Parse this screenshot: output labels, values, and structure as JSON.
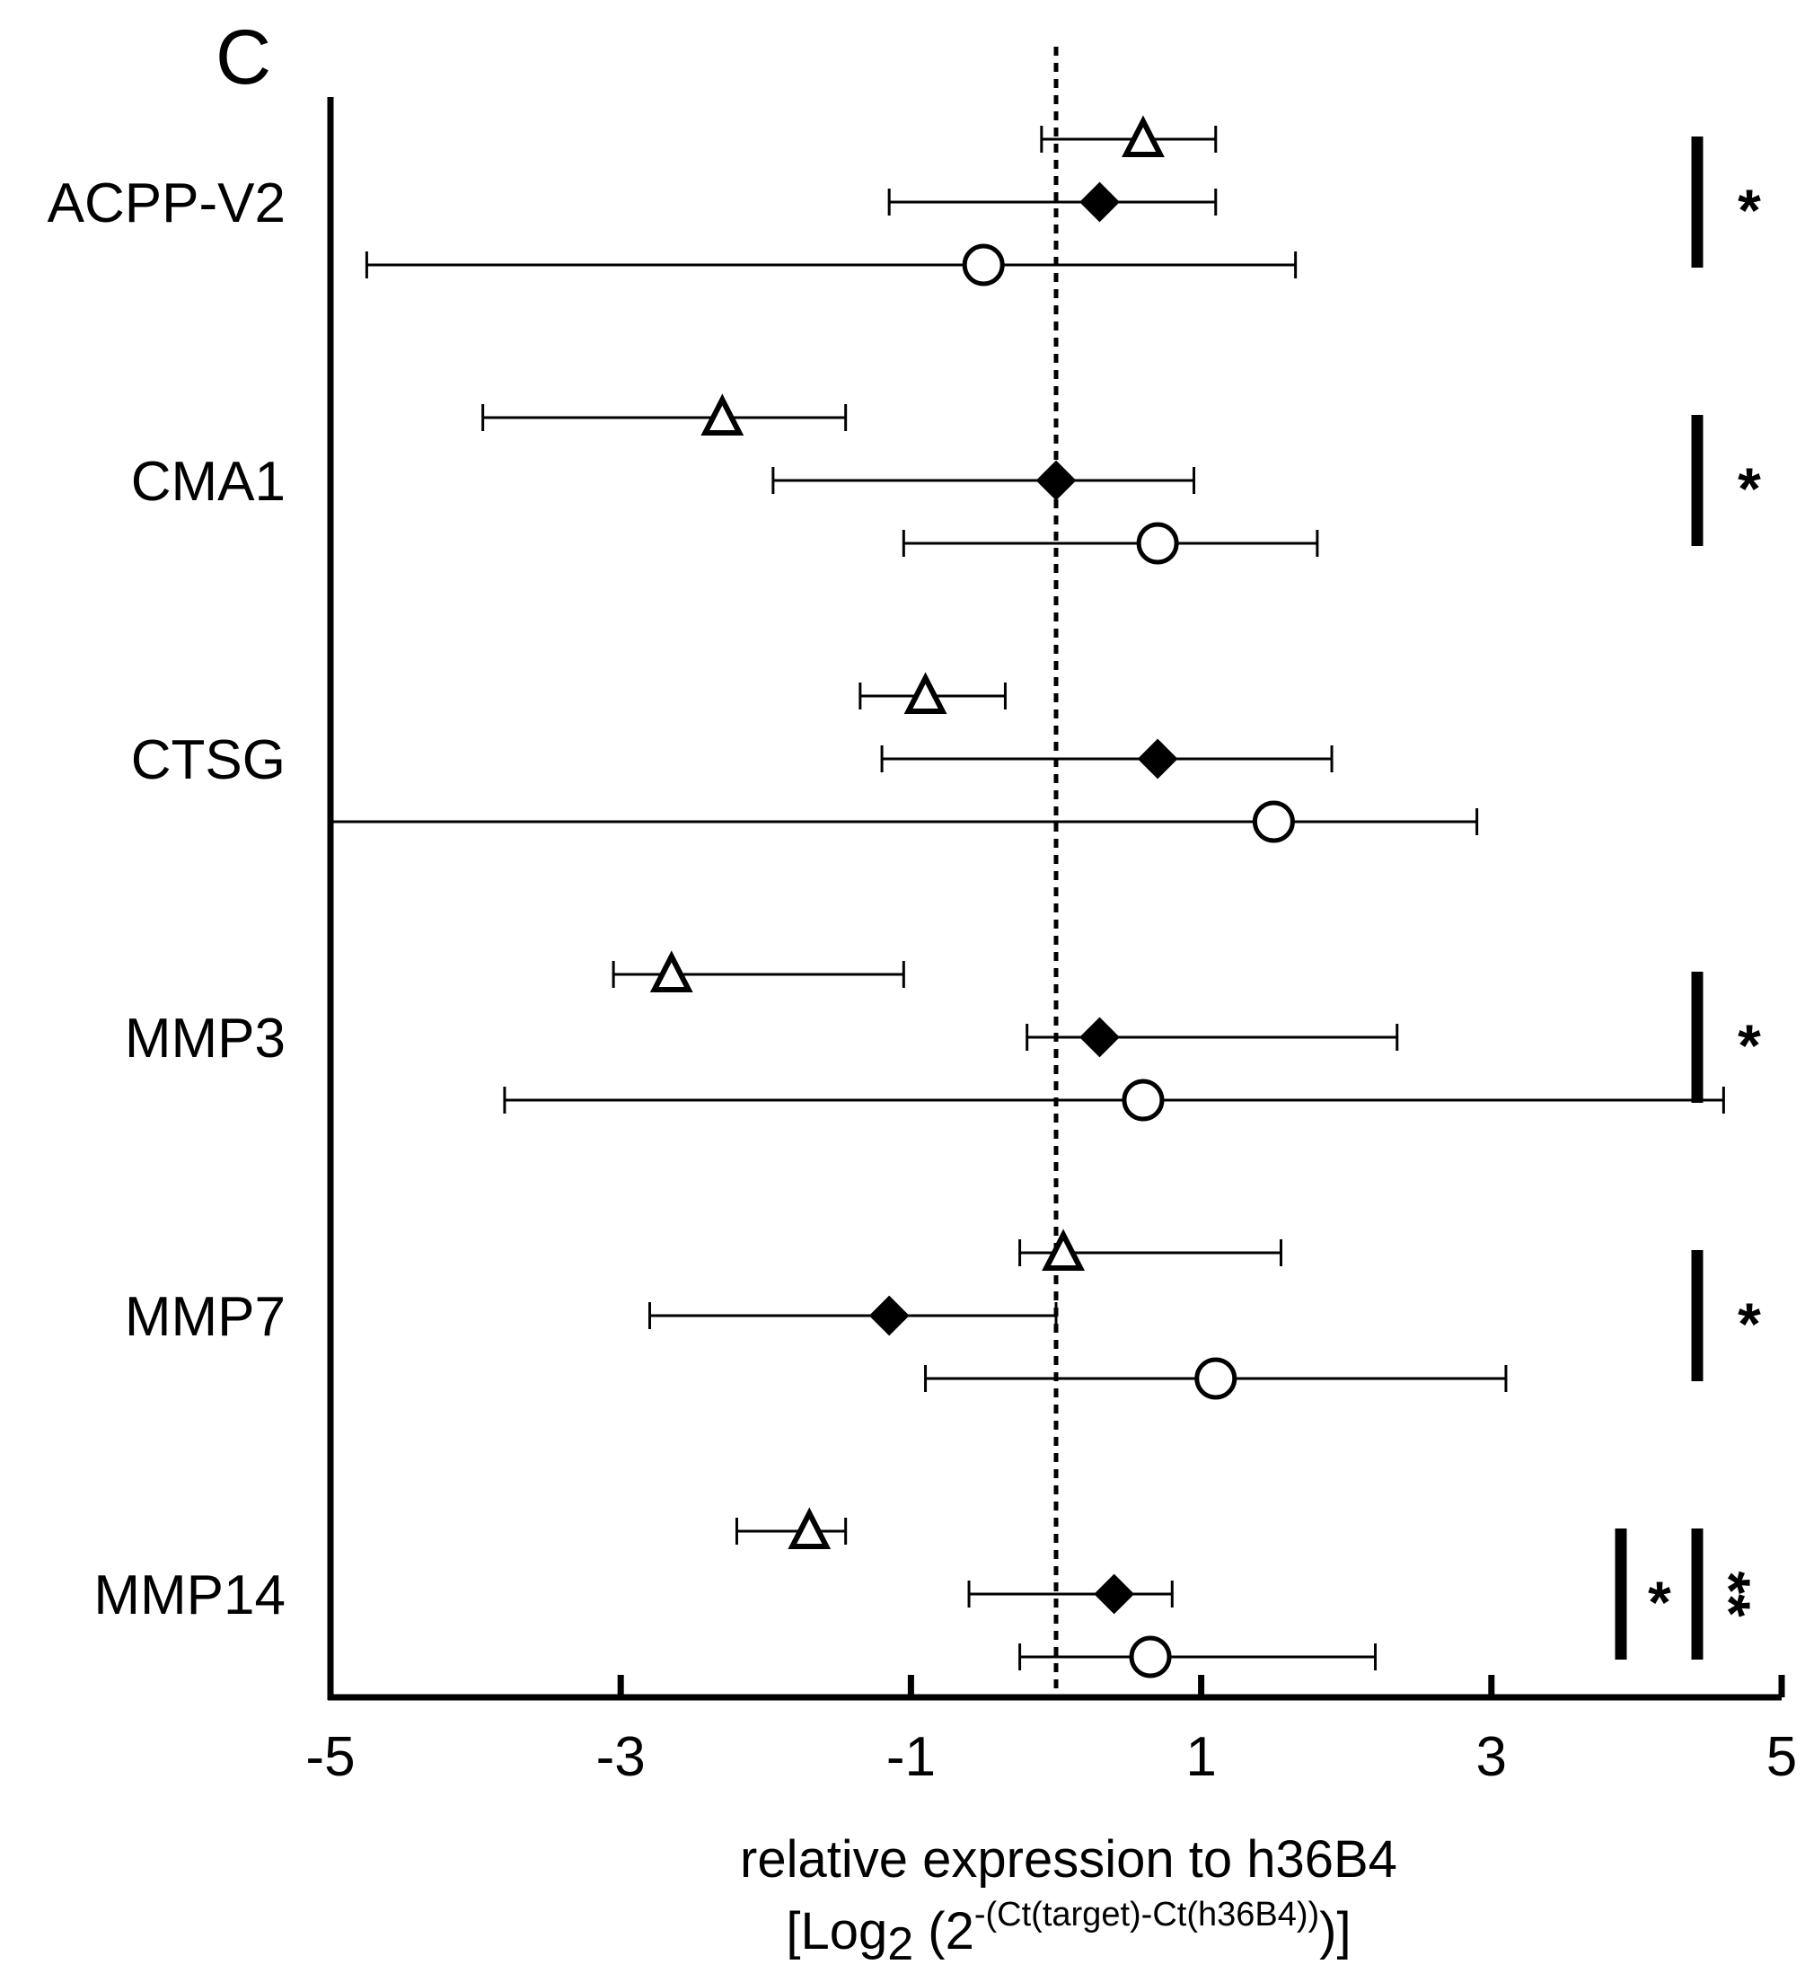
{
  "chart_data": {
    "type": "forest",
    "panel_label": "C",
    "xlabel": "relative expression  to h36B4",
    "xlabel_formula": {
      "open": "[Log",
      "sub": "2",
      "mid": " (2",
      "sup": "-(Ct(target)-Ct(h36B4))",
      "close": ")]"
    },
    "xlim": [
      -5,
      5
    ],
    "xticks": [
      -5,
      -3,
      -1,
      1,
      3,
      5
    ],
    "xtick_labels": [
      "-5",
      "-3",
      "-1",
      "1",
      "3",
      "5"
    ],
    "reference_line": 0,
    "series": [
      {
        "name": "triangle-group",
        "marker": "triangle-open"
      },
      {
        "name": "diamond-group",
        "marker": "diamond-filled"
      },
      {
        "name": "circle-group",
        "marker": "circle-open"
      }
    ],
    "genes": [
      {
        "label": "ACPP-V2",
        "points": [
          {
            "series": "triangle-group",
            "value": 0.6,
            "low": -0.1,
            "high": 1.1
          },
          {
            "series": "diamond-group",
            "value": 0.3,
            "low": -1.15,
            "high": 1.1
          },
          {
            "series": "circle-group",
            "value": -0.5,
            "low": -4.75,
            "high": 1.65
          }
        ],
        "significance": [
          "*"
        ]
      },
      {
        "label": "CMA1",
        "points": [
          {
            "series": "triangle-group",
            "value": -2.3,
            "low": -3.95,
            "high": -1.45
          },
          {
            "series": "diamond-group",
            "value": 0.0,
            "low": -1.95,
            "high": 0.95
          },
          {
            "series": "circle-group",
            "value": 0.7,
            "low": -1.05,
            "high": 1.8
          }
        ],
        "significance": [
          "*"
        ]
      },
      {
        "label": "CTSG",
        "points": [
          {
            "series": "triangle-group",
            "value": -0.9,
            "low": -1.35,
            "high": -0.35
          },
          {
            "series": "diamond-group",
            "value": 0.7,
            "low": -1.2,
            "high": 1.9
          },
          {
            "series": "circle-group",
            "value": 1.5,
            "low": -5.0,
            "high": 2.9
          }
        ],
        "significance": []
      },
      {
        "label": "MMP3",
        "points": [
          {
            "series": "triangle-group",
            "value": -2.65,
            "low": -3.05,
            "high": -1.05
          },
          {
            "series": "diamond-group",
            "value": 0.3,
            "low": -0.2,
            "high": 2.35
          },
          {
            "series": "circle-group",
            "value": 0.6,
            "low": -3.8,
            "high": 4.6
          }
        ],
        "significance": [
          "*"
        ]
      },
      {
        "label": "MMP7",
        "points": [
          {
            "series": "triangle-group",
            "value": 0.05,
            "low": -0.25,
            "high": 1.55
          },
          {
            "series": "diamond-group",
            "value": -1.15,
            "low": -2.8,
            "high": 0.0
          },
          {
            "series": "circle-group",
            "value": 1.1,
            "low": -0.9,
            "high": 3.1
          }
        ],
        "significance": [
          "*"
        ]
      },
      {
        "label": "MMP14",
        "points": [
          {
            "series": "triangle-group",
            "value": -1.7,
            "low": -2.2,
            "high": -1.45
          },
          {
            "series": "diamond-group",
            "value": 0.4,
            "low": -0.6,
            "high": 0.8
          },
          {
            "series": "circle-group",
            "value": 0.65,
            "low": -0.25,
            "high": 2.2
          }
        ],
        "significance": [
          "*",
          "**"
        ]
      }
    ]
  }
}
